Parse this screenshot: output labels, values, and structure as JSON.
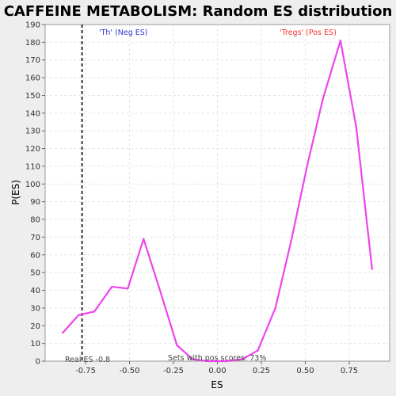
{
  "chart_data": {
    "type": "line",
    "title": "CAFFEINE METABOLISM: Random ES distribution",
    "xlabel": "ES",
    "ylabel": "P(ES)",
    "xlim": [
      -0.98,
      0.98
    ],
    "ylim": [
      0,
      190
    ],
    "xticks": [
      -0.75,
      -0.5,
      -0.25,
      0.0,
      0.25,
      0.5,
      0.75
    ],
    "xtick_labels": [
      "-0.75",
      "-0.50",
      "-0.25",
      "0.00",
      "0.25",
      "0.50",
      "0.75"
    ],
    "yticks": [
      0,
      10,
      20,
      30,
      40,
      50,
      60,
      70,
      80,
      90,
      100,
      110,
      120,
      130,
      140,
      150,
      160,
      170,
      180,
      190
    ],
    "grid": true,
    "series": [
      {
        "color": "#ee44ee",
        "x": [
          -0.88,
          -0.79,
          -0.7,
          -0.6,
          -0.51,
          -0.42,
          -0.33,
          -0.23,
          -0.14,
          -0.05,
          0.05,
          0.14,
          0.23,
          0.33,
          0.42,
          0.51,
          0.6,
          0.7,
          0.79,
          0.88
        ],
        "y": [
          16,
          26,
          28,
          42,
          41,
          69,
          41,
          9,
          1,
          0,
          0,
          1,
          6,
          30,
          68,
          110,
          148,
          181,
          132,
          52
        ]
      }
    ],
    "real_es": -0.77,
    "annotations": {
      "neg_label": "'Th' (Neg ES)",
      "pos_label": "'Tregs' (Pos ES)",
      "neg_color": "#3333cc",
      "pos_color": "#ee3333",
      "real_es_label": "Real ES -0.8",
      "pos_scores_label": "Sets with pos scores: 73%"
    }
  }
}
